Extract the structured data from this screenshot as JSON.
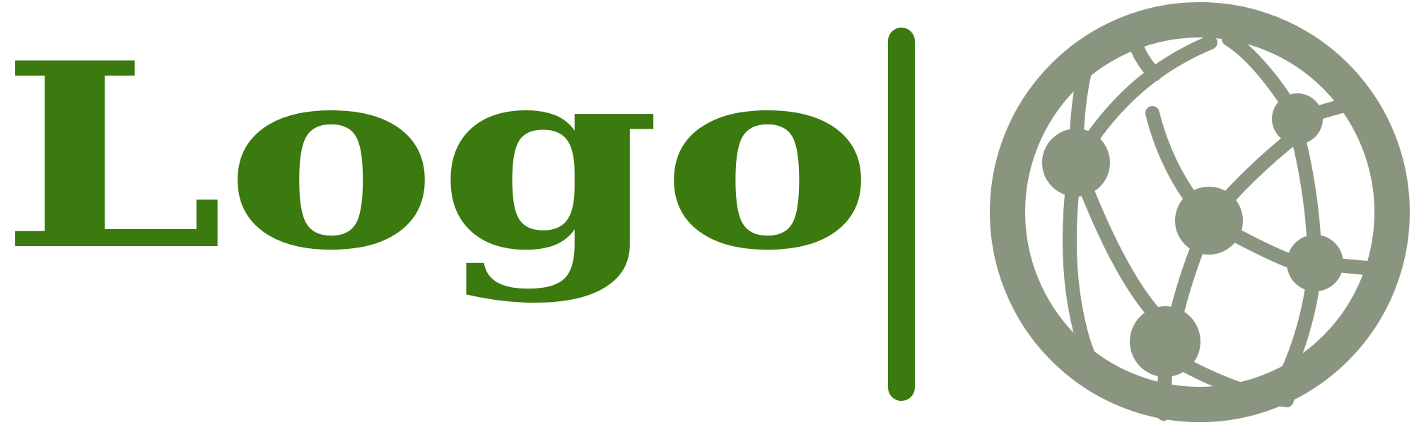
{
  "logo": {
    "wordmark": "Logo",
    "icon": "network-globe-icon",
    "colors": {
      "wordmark": "#3a7a0e",
      "divider": "#3a7a0e",
      "emblem": "#8a9580",
      "background": "#ffffff"
    }
  }
}
